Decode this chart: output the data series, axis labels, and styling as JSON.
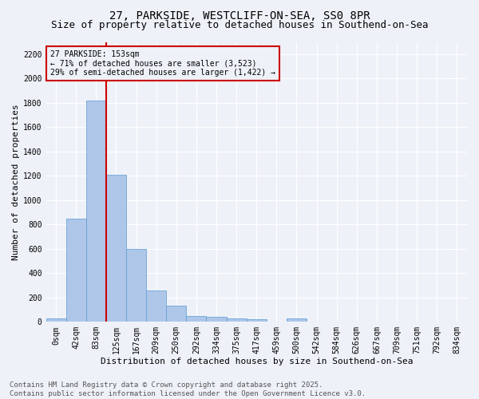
{
  "title_line1": "27, PARKSIDE, WESTCLIFF-ON-SEA, SS0 8PR",
  "title_line2": "Size of property relative to detached houses in Southend-on-Sea",
  "xlabel": "Distribution of detached houses by size in Southend-on-Sea",
  "ylabel": "Number of detached properties",
  "footer_line1": "Contains HM Land Registry data © Crown copyright and database right 2025.",
  "footer_line2": "Contains public sector information licensed under the Open Government Licence v3.0.",
  "categories": [
    "0sqm",
    "42sqm",
    "83sqm",
    "125sqm",
    "167sqm",
    "209sqm",
    "250sqm",
    "292sqm",
    "334sqm",
    "375sqm",
    "417sqm",
    "459sqm",
    "500sqm",
    "542sqm",
    "584sqm",
    "626sqm",
    "667sqm",
    "709sqm",
    "751sqm",
    "792sqm",
    "834sqm"
  ],
  "values": [
    25,
    845,
    1820,
    1210,
    600,
    258,
    130,
    50,
    40,
    30,
    20,
    0,
    30,
    0,
    0,
    0,
    0,
    0,
    0,
    0,
    0
  ],
  "bar_color": "#aec6e8",
  "bar_edge_color": "#5b9bd5",
  "annotation_label": "27 PARKSIDE: 153sqm",
  "annotation_line1": "← 71% of detached houses are smaller (3,523)",
  "annotation_line2": "29% of semi-detached houses are larger (1,422) →",
  "vline_x": 3.0,
  "vline_color": "#cc0000",
  "box_color": "#cc0000",
  "ylim": [
    0,
    2300
  ],
  "yticks": [
    0,
    200,
    400,
    600,
    800,
    1000,
    1200,
    1400,
    1600,
    1800,
    2000,
    2200
  ],
  "background_color": "#eef2f8",
  "grid_color": "#ffffff",
  "title_fontsize": 10,
  "subtitle_fontsize": 9,
  "axis_label_fontsize": 8,
  "tick_fontsize": 7,
  "annotation_fontsize": 7,
  "footer_fontsize": 6.5
}
